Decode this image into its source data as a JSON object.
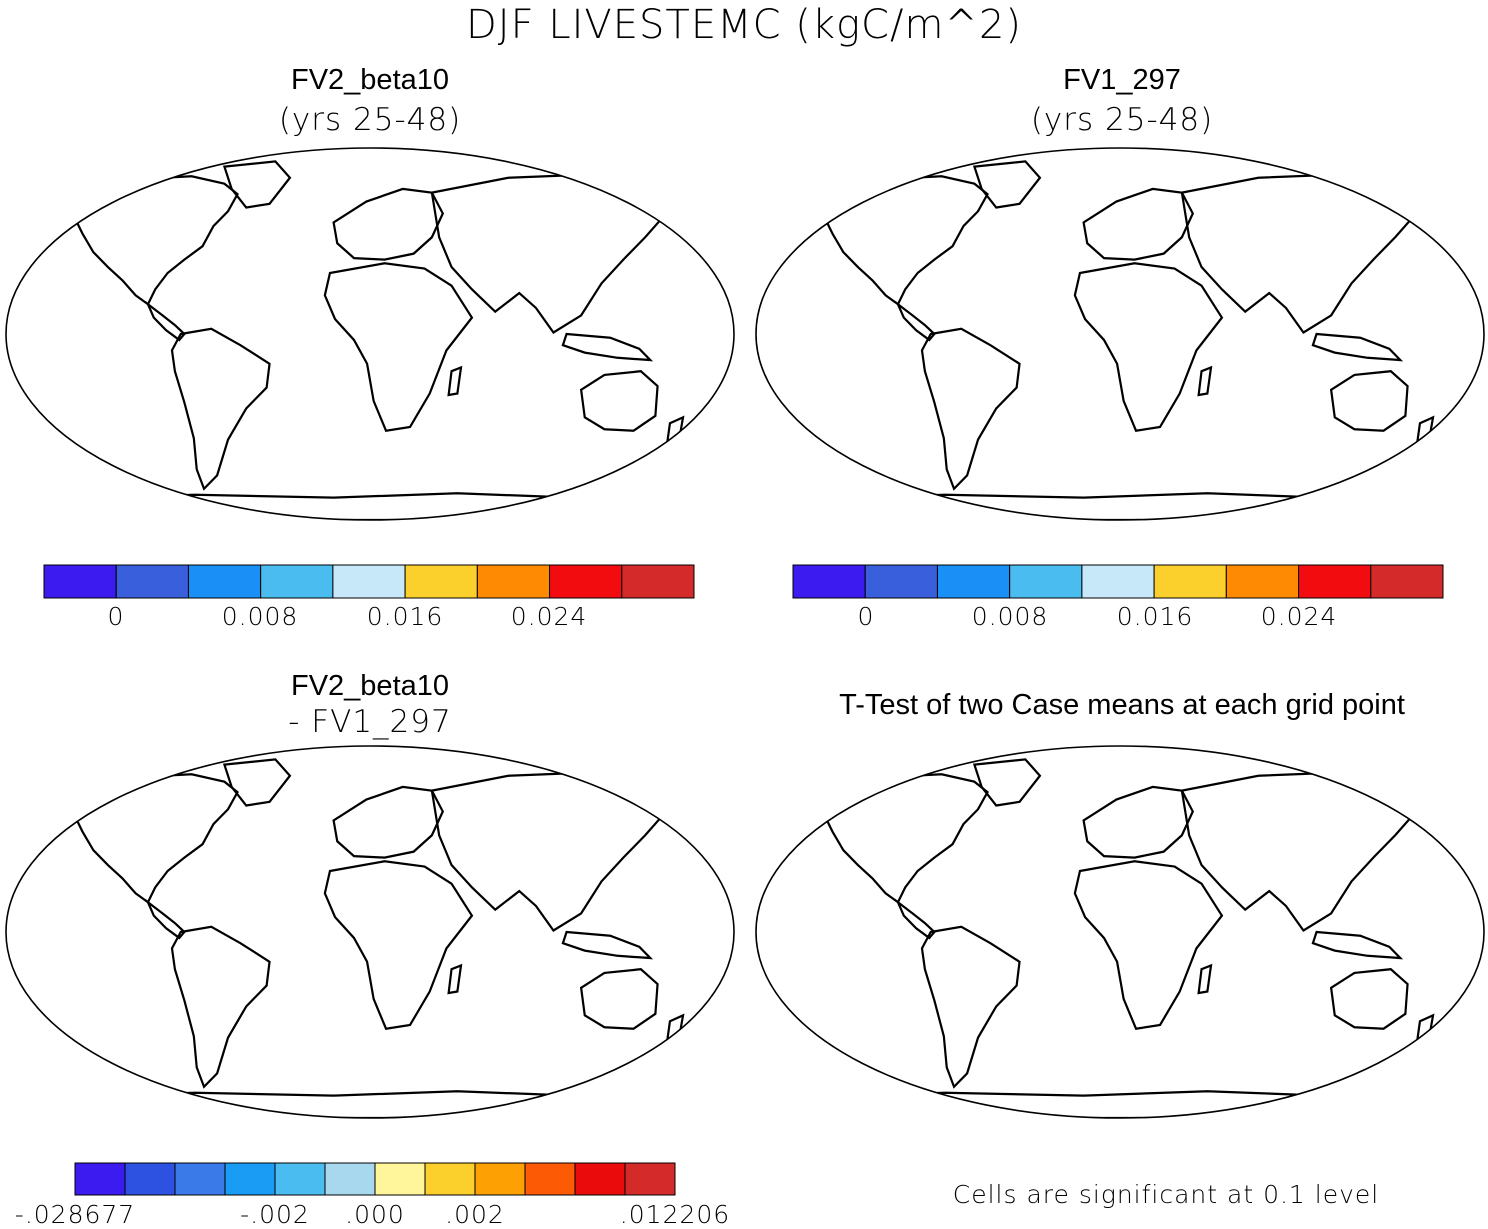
{
  "figure": {
    "title": "DJF LIVESTEMC (kgC/m^2)"
  },
  "panels": [
    {
      "title": "FV2_beta10",
      "subtitle": "(yrs 25-48)",
      "colorbar": {
        "colors": [
          "#3b1bef",
          "#3a5fdc",
          "#1a8ff5",
          "#4bbcf0",
          "#c6e8f8",
          "#fcd02c",
          "#fe8a04",
          "#f20c10",
          "#d42a2a"
        ],
        "tick_labels": [
          "0",
          "0.008",
          "0.016",
          "0.024"
        ]
      }
    },
    {
      "title": "FV1_297",
      "subtitle": "(yrs 25-48)",
      "colorbar": {
        "colors": [
          "#3b1bef",
          "#3a5fdc",
          "#1a8ff5",
          "#4bbcf0",
          "#c6e8f8",
          "#fcd02c",
          "#fe8a04",
          "#f20c10",
          "#d42a2a"
        ],
        "tick_labels": [
          "0",
          "0.008",
          "0.016",
          "0.024"
        ]
      }
    },
    {
      "title": "FV2_beta10",
      "subtitle": "- FV1_297",
      "colorbar": {
        "colors": [
          "#3b1bef",
          "#2d51e0",
          "#3a7ae8",
          "#1a9cf5",
          "#4bbcf0",
          "#a8d8ee",
          "#fff59a",
          "#fcd02c",
          "#fca004",
          "#fc5a04",
          "#ea0c0c",
          "#d42a2a"
        ],
        "tick_labels": [
          "-.028677",
          "-.002",
          ".000",
          ".002",
          ".012206"
        ]
      }
    },
    {
      "title": "T-Test of two Case means at each grid point",
      "note": "Cells are significant at 0.1 level",
      "fill_color": "#ff0000"
    }
  ]
}
